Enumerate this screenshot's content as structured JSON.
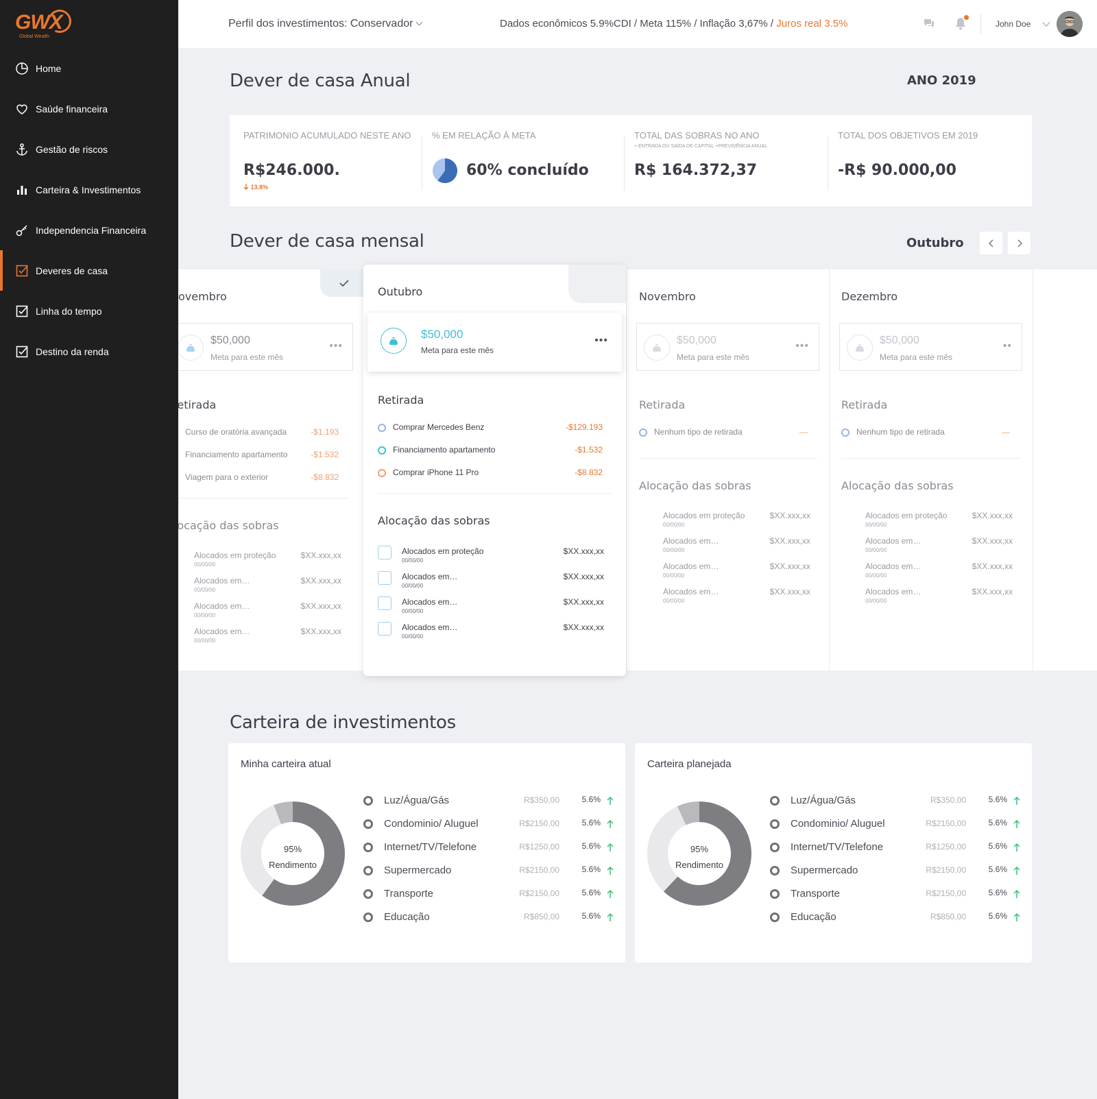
{
  "brand": {
    "logo": "GWX",
    "tagline": "Global Wealth",
    "accent": "#e8772e"
  },
  "sidebar": {
    "items": [
      {
        "label": "Home",
        "icon": "pie-chart-icon"
      },
      {
        "label": "Saúde financeira",
        "icon": "heart-icon"
      },
      {
        "label": "Gestão de riscos",
        "icon": "anchor-icon"
      },
      {
        "label": "Carteira & Investimentos",
        "icon": "bar-chart-icon"
      },
      {
        "label": "Independencia Financeira",
        "icon": "key-icon"
      },
      {
        "label": "Deveres de casa",
        "icon": "checkbox-icon",
        "active": true
      },
      {
        "label": "Linha do tempo",
        "icon": "checkbox-icon"
      },
      {
        "label": "Destino da renda",
        "icon": "checkbox-icon"
      }
    ]
  },
  "topbar": {
    "profile": "Perfil dos investimentos: Conservador",
    "eco_main": "Dados econômicos 5.9%CDI  / Meta 115% / Inflação 3,67% / ",
    "eco_highlight": "Juros real 3.5%",
    "user_name": "John Doe"
  },
  "annual": {
    "title": "Dever de casa Anual",
    "year": "ANO 2019",
    "stats": [
      {
        "label": "PATRIMONIO ACUMULADO NESTE ANO",
        "value": "R$246.000.",
        "change": "13.8%"
      },
      {
        "label": "% EM RELAÇÃO À META",
        "value": "60% concluído",
        "progress": 0.6
      },
      {
        "label": "TOTAL DAS SOBRAS NO ANO",
        "sub": "+ ENTRADA OU SAÍDA DE CAPITAL +PREVIDÊNCIA ANUAL",
        "value": "R$ 164.372,37"
      },
      {
        "label": "TOTAL DOS OBJETIVOS EM 2019",
        "value": "-R$ 90.000,00"
      }
    ]
  },
  "monthly": {
    "title": "Dever de casa mensal",
    "current_month": "Outubro",
    "goal_label": "Meta para este mês",
    "withdraw_title": "Retirada",
    "alloc_title": "Alocação das sobras",
    "prev": {
      "month": "Novembro",
      "goal": "$50,000",
      "withdrawals": [
        {
          "label": "Curso de oratória avançada",
          "value": "-$1.193"
        },
        {
          "label": "Financiamento apartamento",
          "value": "-$1.532"
        },
        {
          "label": "Viagem para o exterior",
          "value": "-$8.832"
        }
      ],
      "alloc": [
        {
          "label": "Alocados em proteção",
          "date": "00/00/00",
          "value": "$XX.xxx,xx"
        },
        {
          "label": "Alocados em…",
          "date": "00/00/00",
          "value": "$XX.xxx,xx"
        },
        {
          "label": "Alocados em…",
          "date": "00/00/00",
          "value": "$XX.xxx,xx"
        },
        {
          "label": "Alocados em…",
          "date": "00/00/00",
          "value": "$XX.xxx,xx"
        }
      ]
    },
    "active": {
      "month": "Outubro",
      "goal": "$50,000",
      "withdrawals": [
        {
          "label": "Comprar Mercedes Benz",
          "value": "-$129.193",
          "color": "#9ab3e0"
        },
        {
          "label": "Financiamento apartamento",
          "value": "-$1.532",
          "color": "#3ec0d4"
        },
        {
          "label": "Comprar iPhone 11 Pro",
          "value": "-$8.832",
          "color": "#f0a070"
        }
      ],
      "alloc": [
        {
          "label": "Alocados em proteção",
          "date": "00/00/00",
          "value": "$XX.xxx,xx"
        },
        {
          "label": "Alocados em…",
          "date": "00/00/00",
          "value": "$XX.xxx,xx"
        },
        {
          "label": "Alocados em…",
          "date": "00/00/00",
          "value": "$XX.xxx,xx"
        },
        {
          "label": "Alocados em…",
          "date": "00/00/00",
          "value": "$XX.xxx,xx"
        }
      ]
    },
    "next": [
      {
        "month": "Novembro",
        "goal": "$50,000",
        "withdrawal": {
          "label": "Nenhum tipo de retirada",
          "value": "—"
        },
        "alloc": [
          {
            "label": "Alocados em proteção",
            "date": "00/00/00",
            "value": "$XX.xxx,xx"
          },
          {
            "label": "Alocados em…",
            "date": "00/00/00",
            "value": "$XX.xxx,xx"
          },
          {
            "label": "Alocados em…",
            "date": "00/00/00",
            "value": "$XX.xxx,xx"
          },
          {
            "label": "Alocados em…",
            "date": "00/00/00",
            "value": "$XX.xxx,xx"
          }
        ]
      },
      {
        "month": "Dezembro",
        "goal": "$50,000",
        "withdrawal": {
          "label": "Nenhum tipo de retirada",
          "value": "—"
        },
        "alloc": [
          {
            "label": "Alocados em proteção",
            "date": "00/00/00",
            "value": "$XX.xxx,xx"
          },
          {
            "label": "Alocados em…",
            "date": "00/00/00",
            "value": "$XX.xxx,xx"
          },
          {
            "label": "Alocados em…",
            "date": "00/00/00",
            "value": "$XX.xxx,xx"
          },
          {
            "label": "Alocados em…",
            "date": "00/00/00",
            "value": "$XX.xxx,xx"
          }
        ]
      }
    ]
  },
  "portfolio": {
    "title": "Carteira de investimentos",
    "cards": [
      {
        "title": "Minha carteira atual",
        "donut_value": "95%",
        "donut_label": "Rendimento",
        "segments": [
          0.6,
          0.34,
          0.06
        ],
        "rows": [
          {
            "label": "Luz/Água/Gás",
            "value": "R$350,00",
            "pct": "5.6%"
          },
          {
            "label": "Condominio/ Aluguel",
            "value": "R$2150,00",
            "pct": "5.6%"
          },
          {
            "label": "Internet/TV/Telefone",
            "value": "R$1250,00",
            "pct": "5.6%"
          },
          {
            "label": "Supermercado",
            "value": "R$2150,00",
            "pct": "5.6%"
          },
          {
            "label": "Transporte",
            "value": "R$2150,00",
            "pct": "5.6%"
          },
          {
            "label": "Educação",
            "value": "R$850,00",
            "pct": "5.6%"
          }
        ]
      },
      {
        "title": "Carteira planejada",
        "donut_value": "95%",
        "donut_label": "Rendimento",
        "segments": [
          0.62,
          0.31,
          0.07
        ],
        "rows": [
          {
            "label": "Luz/Água/Gás",
            "value": "R$350,00",
            "pct": "5.6%"
          },
          {
            "label": "Condominio/ Aluguel",
            "value": "R$2150,00",
            "pct": "5.6%"
          },
          {
            "label": "Internet/TV/Telefone",
            "value": "R$1250,00",
            "pct": "5.6%"
          },
          {
            "label": "Supermercado",
            "value": "R$2150,00",
            "pct": "5.6%"
          },
          {
            "label": "Transporte",
            "value": "R$2150,00",
            "pct": "5.6%"
          },
          {
            "label": "Educação",
            "value": "R$850,00",
            "pct": "5.6%"
          }
        ]
      }
    ]
  }
}
